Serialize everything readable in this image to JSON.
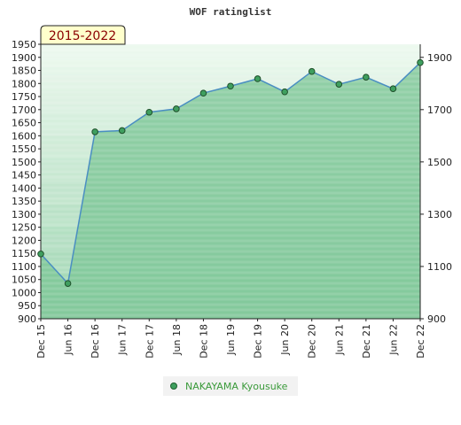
{
  "chart_data": {
    "type": "area",
    "title": "WOF ratinglist",
    "badge": "2015-2022",
    "x": [
      "Dec 15",
      "Jun 16",
      "Dec 16",
      "Jun 17",
      "Dec 17",
      "Jun 18",
      "Dec 18",
      "Jun 19",
      "Dec 19",
      "Jun 20",
      "Dec 20",
      "Jun 21",
      "Dec 21",
      "Jun 22",
      "Dec 22"
    ],
    "series": [
      {
        "name": "NAKAYAMA Kyousuke",
        "values": [
          1148,
          1035,
          1615,
          1620,
          1690,
          1703,
          1763,
          1790,
          1818,
          1768,
          1846,
          1797,
          1824,
          1780,
          1880
        ]
      }
    ],
    "left_axis": {
      "ylim": [
        900,
        1950
      ],
      "ticks": [
        900,
        950,
        1000,
        1050,
        1100,
        1150,
        1200,
        1250,
        1300,
        1350,
        1400,
        1450,
        1500,
        1550,
        1600,
        1650,
        1700,
        1750,
        1800,
        1850,
        1900,
        1950
      ]
    },
    "right_axis": {
      "ylim": [
        900,
        1950
      ],
      "ticks": [
        900,
        1100,
        1300,
        1500,
        1700,
        1900
      ]
    },
    "colors": {
      "line": "#4a8ec2",
      "area": "#7cc596",
      "marker": "#3f9f5f",
      "badge_bg": "#ffffcc",
      "legend_bg": "#f2f2f2",
      "legend_text": "#3a9a3a"
    },
    "legend_position": "bottom-center",
    "grid": false
  }
}
